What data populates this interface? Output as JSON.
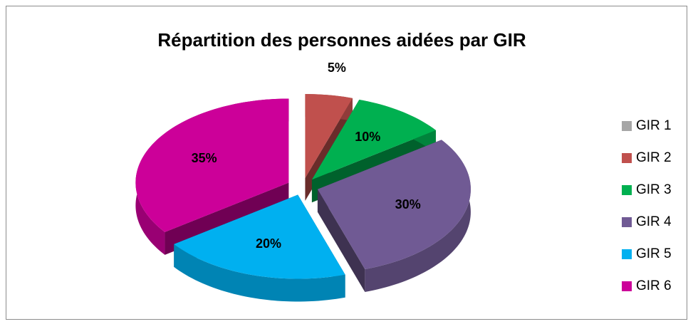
{
  "chart_data": {
    "type": "pie3d",
    "title": "Répartition des personnes aidées par GIR",
    "categories": [
      "GIR 1",
      "GIR 2",
      "GIR 3",
      "GIR 4",
      "GIR 5",
      "GIR 6"
    ],
    "values": [
      0,
      5,
      10,
      30,
      20,
      35
    ],
    "value_labels": [
      null,
      "5%",
      "10%",
      "30%",
      "20%",
      "35%"
    ],
    "colors": [
      "#a6a6a6",
      "#c0504d",
      "#00b050",
      "#705a94",
      "#00b0f0",
      "#cc0099"
    ],
    "legend": "right"
  }
}
